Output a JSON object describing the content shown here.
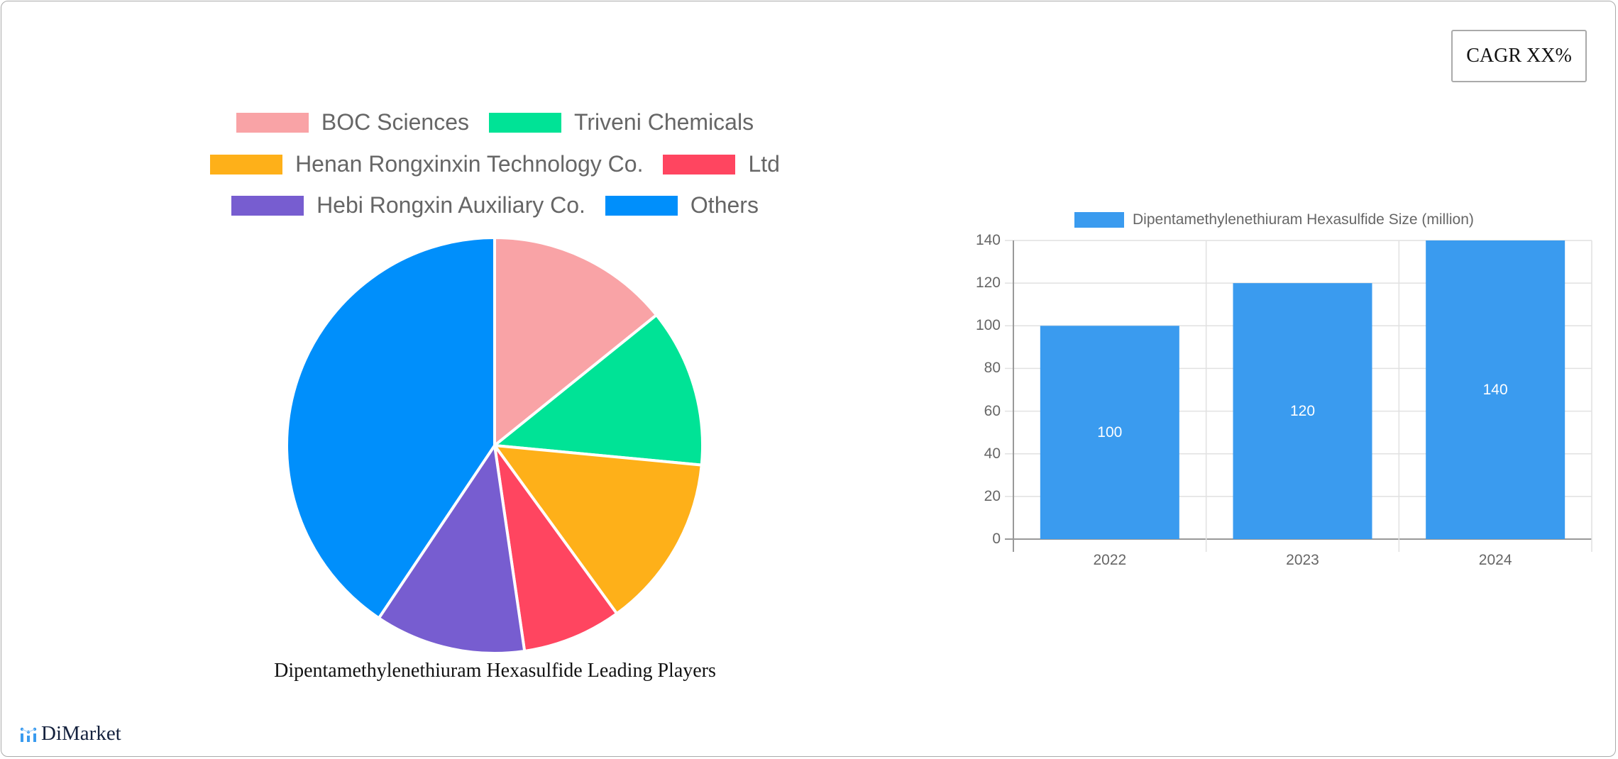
{
  "cagr_badge": "CAGR XX%",
  "brand": {
    "name": "DiMarket",
    "icon": "bar-dots-logo-icon",
    "color": "#3a9bef"
  },
  "chart_data": [
    {
      "type": "pie",
      "title": "Dipentamethylenethiuram Hexasulfide Leading Players",
      "legend_position": "top",
      "labels": [
        "BOC Sciences",
        "Triveni Chemicals",
        "Henan Rongxinxin Technology Co.",
        "Ltd",
        "Hebi Rongxin Auxiliary Co.",
        "Others"
      ],
      "values": [
        14.2,
        12.3,
        13.5,
        7.7,
        11.7,
        40.6
      ],
      "colors": [
        "#f9a3a6",
        "#00e396",
        "#feb019",
        "#ff4560",
        "#775dd0",
        "#008ffb"
      ]
    },
    {
      "type": "bar",
      "title": "",
      "legend": [
        "Dipentamethylenethiuram Hexasulfide Size (million)"
      ],
      "legend_position": "top",
      "categories": [
        "2022",
        "2023",
        "2024"
      ],
      "series": [
        {
          "name": "Dipentamethylenethiuram Hexasulfide Size (million)",
          "values": [
            100,
            120,
            140
          ],
          "color": "#3a9bef"
        }
      ],
      "value_labels": [
        "100",
        "120",
        "140"
      ],
      "xlabel": "",
      "ylabel": "",
      "ylim": [
        0,
        140
      ],
      "yticks": [
        "0",
        "20",
        "40",
        "60",
        "80",
        "100",
        "120",
        "140"
      ],
      "grid": true
    }
  ]
}
